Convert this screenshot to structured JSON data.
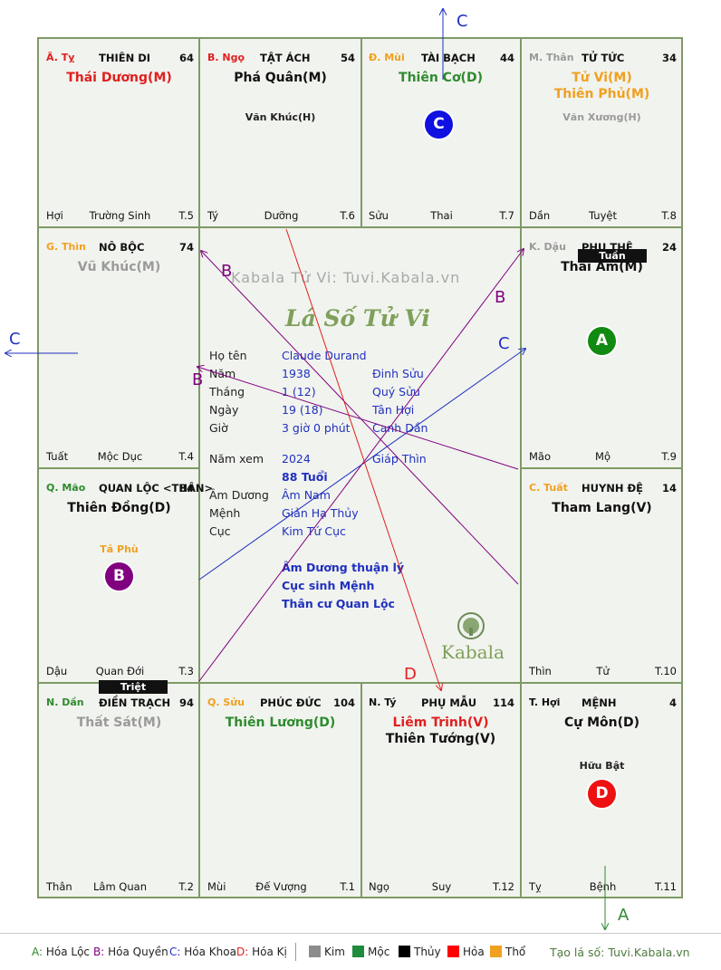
{
  "palaces": [
    {
      "branch": "Ã. Tỵ",
      "branch_color": "#e02020",
      "name": "THIÊN DI",
      "num": "64",
      "stars": [
        {
          "t": "Thái Dương(M)",
          "c": "#e02020"
        }
      ],
      "minor": "",
      "foot_l": "Hợi",
      "foot_c": "Trường Sinh",
      "foot_r": "T.5"
    },
    {
      "branch": "B. Ngọ",
      "branch_color": "#e02020",
      "name": "TẬT ÁCH",
      "num": "54",
      "stars": [
        {
          "t": "Phá Quân(M)",
          "c": "#111"
        }
      ],
      "minor": "Văn Khúc(H)",
      "foot_l": "Tý",
      "foot_c": "Dưỡng",
      "foot_r": "T.6"
    },
    {
      "branch": "Đ. Mùi",
      "branch_color": "#f0a020",
      "name": "TÀI BẠCH",
      "num": "44",
      "stars": [
        {
          "t": "Thiên Cơ(D)",
          "c": "#2e8b2e"
        }
      ],
      "minor": "",
      "foot_l": "Sửu",
      "foot_c": "Thai",
      "foot_r": "T.7"
    },
    {
      "branch": "M. Thân",
      "branch_color": "#9a9a9a",
      "name": "TỬ TỨC",
      "num": "34",
      "stars": [
        {
          "t": "Tử Vi(M)",
          "c": "#f0a020"
        },
        {
          "t": "Thiên Phủ(M)",
          "c": "#f0a020"
        }
      ],
      "minor": "Văn Xương(H)",
      "minor_color": "#9a9a9a",
      "foot_l": "Dần",
      "foot_c": "Tuyệt",
      "foot_r": "T.8"
    },
    {
      "branch": "G. Thìn",
      "branch_color": "#f0a020",
      "name": "NÔ BỘC",
      "num": "74",
      "stars": [
        {
          "t": "Vũ Khúc(M)",
          "c": "#9a9a9a"
        }
      ],
      "minor": "",
      "foot_l": "Tuất",
      "foot_c": "Mộc Dục",
      "foot_r": "T.4"
    },
    {
      "branch": "K. Dậu",
      "branch_color": "#9a9a9a",
      "name": "PHU THÊ",
      "num": "24",
      "stars": [
        {
          "t": "Thái Âm(M)",
          "c": "#111"
        }
      ],
      "minor": "",
      "foot_l": "Mão",
      "foot_c": "Mộ",
      "foot_r": "T.9"
    },
    {
      "branch": "Q. Mão",
      "branch_color": "#2e8b2e",
      "name": "QUAN LỘC <THÂN>",
      "num": "84",
      "stars": [
        {
          "t": "Thiên Đồng(D)",
          "c": "#111"
        }
      ],
      "minor": "Tả Phù",
      "minor_color": "#f0a020",
      "foot_l": "Dậu",
      "foot_c": "Quan Đới",
      "foot_r": "T.3"
    },
    {
      "branch": "C. Tuất",
      "branch_color": "#f0a020",
      "name": "HUYNH ĐỆ",
      "num": "14",
      "stars": [
        {
          "t": "Tham Lang(V)",
          "c": "#111"
        }
      ],
      "minor": "",
      "foot_l": "Thìn",
      "foot_c": "Tử",
      "foot_r": "T.10"
    },
    {
      "branch": "N. Dần",
      "branch_color": "#2e8b2e",
      "name": "ĐIỀN TRẠCH",
      "num": "94",
      "stars": [
        {
          "t": "Thất Sát(M)",
          "c": "#9a9a9a"
        }
      ],
      "minor": "",
      "foot_l": "Thân",
      "foot_c": "Lâm Quan",
      "foot_r": "T.2"
    },
    {
      "branch": "Q. Sửu",
      "branch_color": "#f0a020",
      "name": "PHÚC ĐỨC",
      "num": "104",
      "stars": [
        {
          "t": "Thiên Lương(D)",
          "c": "#2e8b2e"
        }
      ],
      "minor": "",
      "foot_l": "Mùi",
      "foot_c": "Đế Vượng",
      "foot_r": "T.1"
    },
    {
      "branch": "N. Tý",
      "branch_color": "#111",
      "name": "PHỤ MẪU",
      "num": "114",
      "stars": [
        {
          "t": "Liêm Trinh(V)",
          "c": "#e02020"
        },
        {
          "t": "Thiên Tướng(V)",
          "c": "#111"
        }
      ],
      "minor": "",
      "foot_l": "Ngọ",
      "foot_c": "Suy",
      "foot_r": "T.12"
    },
    {
      "branch": "T. Hợi",
      "branch_color": "#111",
      "name": "MỆNH",
      "num": "4",
      "stars": [
        {
          "t": "Cự Môn(D)",
          "c": "#111"
        }
      ],
      "minor": "Hữu Bật",
      "foot_l": "Tỵ",
      "foot_c": "Bệnh",
      "foot_r": "T.11"
    }
  ],
  "tags": {
    "tuan": "Tuần",
    "triet": "Triệt"
  },
  "badges": {
    "A": "A",
    "B": "B",
    "C": "C",
    "D": "D"
  },
  "center": {
    "watermark": "Kabala Tử Vi: Tuvi.Kabala.vn",
    "title": "Lá Số Tử Vi",
    "rows": [
      {
        "l": "Họ tên",
        "v1": "Claude Durand",
        "v2": ""
      },
      {
        "l": "Năm",
        "v1": "1938",
        "v2": "Đinh Sửu"
      },
      {
        "l": "Tháng",
        "v1": "1  (12)",
        "v2": "Quý Sửu"
      },
      {
        "l": "Ngày",
        "v1": "19  (18)",
        "v2": "Tân Hợi"
      },
      {
        "l": "Giờ",
        "v1": "3 giờ 0 phút",
        "v2": "Canh Dần"
      }
    ],
    "year_view_label": "Năm xem",
    "year_view": "2024",
    "year_view_cc": "Giáp Thìn",
    "age": "88 Tuổi",
    "rows2": [
      {
        "l": "Âm Dương",
        "v": "Âm Nam"
      },
      {
        "l": "Mệnh",
        "v": "Giản Hạ Thủy"
      },
      {
        "l": "Cục",
        "v": "Kim Tứ Cục"
      }
    ],
    "notes": [
      "Âm Dương thuận lý",
      "Cục sinh Mệnh",
      "Thân cư Quan Lộc"
    ],
    "logo": "Kabala"
  },
  "arrow_labels": {
    "c_top": "C",
    "c_left": "C",
    "c_mid": "C",
    "b_top": "B",
    "b_right": "B",
    "b_left": "B",
    "d": "D",
    "a": "A"
  },
  "legend": {
    "hoa": [
      {
        "k": "A:",
        "v": "Hóa Lộc",
        "c": "#2e8b2e"
      },
      {
        "k": "B:",
        "v": "Hóa Quyền",
        "c": "#800080"
      },
      {
        "k": "C:",
        "v": "Hóa Khoa",
        "c": "#2030c0"
      },
      {
        "k": "D:",
        "v": "Hóa Kị",
        "c": "#e02020"
      }
    ],
    "elements": [
      {
        "v": "Kim",
        "c": "#8c8c8c"
      },
      {
        "v": "Mộc",
        "c": "#1e8c3c"
      },
      {
        "v": "Thủy",
        "c": "#000000"
      },
      {
        "v": "Hỏa",
        "c": "#ff0000"
      },
      {
        "v": "Thổ",
        "c": "#f0a020"
      }
    ],
    "site": "Tạo lá số: Tuvi.Kabala.vn"
  }
}
